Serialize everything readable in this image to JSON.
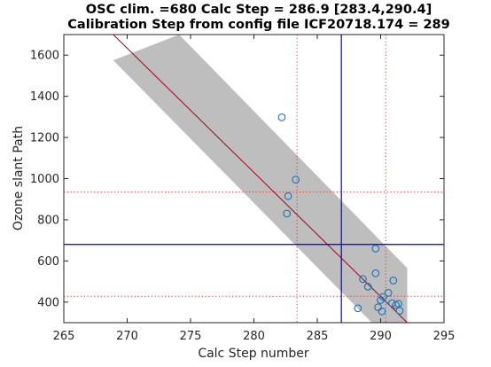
{
  "chart_data": {
    "type": "scatter",
    "title_line1": "OSC clim. =680   Calc Step = 286.9 [283.4,290.4]",
    "title_line2": "Calibration Step from config file ICF20718.174 = 289",
    "xlabel": "Calc Step number",
    "ylabel": "Ozone slant Path",
    "xlim": [
      265,
      295
    ],
    "ylim": [
      300,
      1700
    ],
    "xticks": [
      "265",
      "270",
      "275",
      "280",
      "285",
      "290",
      "295"
    ],
    "yticks": [
      "400",
      "600",
      "800",
      "1000",
      "1200",
      "1400",
      "1600"
    ],
    "points": [
      {
        "x": 282.2,
        "y": 1298
      },
      {
        "x": 283.3,
        "y": 995
      },
      {
        "x": 282.7,
        "y": 915
      },
      {
        "x": 282.6,
        "y": 830
      },
      {
        "x": 289.6,
        "y": 660
      },
      {
        "x": 289.6,
        "y": 540
      },
      {
        "x": 288.6,
        "y": 512
      },
      {
        "x": 291.0,
        "y": 505
      },
      {
        "x": 289.0,
        "y": 475
      },
      {
        "x": 290.6,
        "y": 445
      },
      {
        "x": 290.2,
        "y": 425
      },
      {
        "x": 290.0,
        "y": 410
      },
      {
        "x": 290.9,
        "y": 395
      },
      {
        "x": 291.4,
        "y": 392
      },
      {
        "x": 291.2,
        "y": 385
      },
      {
        "x": 289.8,
        "y": 375
      },
      {
        "x": 288.2,
        "y": 370
      },
      {
        "x": 291.5,
        "y": 358
      },
      {
        "x": 290.1,
        "y": 355
      }
    ],
    "fit_line": [
      [
        268.9,
        1700
      ],
      [
        292.1,
        300
      ]
    ],
    "confidence_band": [
      [
        268.9,
        1575
      ],
      [
        274.1,
        1700
      ],
      [
        292.1,
        565
      ],
      [
        292.1,
        300
      ],
      [
        289.3,
        300
      ],
      [
        268.9,
        1575
      ]
    ],
    "reference_lines": {
      "osc_clim": 680,
      "calc_step": 286.9,
      "calc_step_interval": [
        283.4,
        290.4
      ],
      "osc_interval": [
        935,
        428
      ]
    },
    "colors": {
      "band": "#bebebe",
      "fit_line": "#a0001e",
      "reference_line": "#0000c8",
      "interval_line": "#e03030",
      "marker_edge": "#1f6eb4"
    },
    "grid": false,
    "legend": "none"
  }
}
